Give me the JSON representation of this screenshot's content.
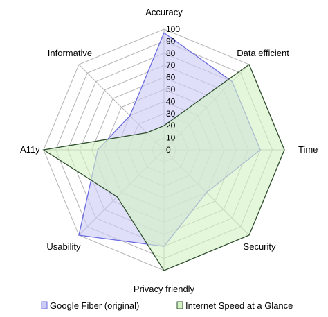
{
  "chart_data": {
    "type": "radar",
    "axes": [
      "Accuracy",
      "Data efficient",
      "Time",
      "Security",
      "Privacy friendly",
      "Usability",
      "A11y",
      "Informative"
    ],
    "rlim": [
      0,
      100
    ],
    "ticks": [
      "0",
      "10",
      "20",
      "30",
      "40",
      "50",
      "60",
      "70",
      "80",
      "90",
      "100"
    ],
    "series": [
      {
        "name": "Google Fiber (original)",
        "values": [
          97,
          80,
          80,
          50,
          80,
          100,
          55,
          40
        ],
        "fill": "#ccccf5",
        "stroke": "#6b6be0"
      },
      {
        "name": "Internet Speed at a Glance",
        "values": [
          20,
          100,
          100,
          100,
          100,
          55,
          100,
          20
        ],
        "fill": "#d4f2c4",
        "stroke": "#2f4f2f"
      }
    ],
    "grid": true,
    "legend": "bottom"
  }
}
